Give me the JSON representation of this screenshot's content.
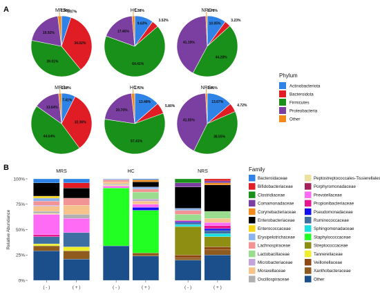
{
  "panel_labels": {
    "a": "A",
    "b": "B"
  },
  "chart_data": [
    {
      "type": "pie",
      "legend_title": "Phylum",
      "legend_placement": "right",
      "categories": [
        "Actinobacteriota",
        "Bacteroidota",
        "Firmicutes",
        "Proteobacteria",
        "Other"
      ],
      "colors": [
        "#2f83e6",
        "#e01d25",
        "#199019",
        "#7a3fa0",
        "#f2891a"
      ],
      "pies": [
        {
          "title": "MRS-",
          "values": [
            5.07,
            34.02,
            39.01,
            19.92,
            1.96
          ],
          "labels": [
            "5.07%",
            "34.02%",
            "39.01%",
            "19.92%",
            "1.96%"
          ]
        },
        {
          "title": "HC-",
          "values": [
            9.63,
            3.52,
            64.41,
            17.46,
            1.38
          ],
          "labels": [
            "9.63%",
            "3.52%",
            "64.41%",
            "17.46%",
            "1.38%"
          ]
        },
        {
          "title": "NRS-",
          "values": [
            10.05,
            3.23,
            44.28,
            41.19,
            0.78
          ],
          "labels": [
            "10.05%",
            "3.23%",
            "44.28%",
            "41.19%",
            "0.78%"
          ]
        },
        {
          "title": "MRS+",
          "values": [
            7.41,
            32.36,
            44.64,
            13.64,
            1.52
          ],
          "labels": [
            "7.41%",
            "32.36%",
            "44.64%",
            "13.64%",
            "1.52%"
          ]
        },
        {
          "title": "HC+",
          "values": [
            13.48,
            5.8,
            57.41,
            20.7,
            1.72
          ],
          "labels": [
            "13.48%",
            "5.80%",
            "57.41%",
            "20.70%",
            "1.72%"
          ]
        },
        {
          "title": "NRS+",
          "values": [
            13.67,
            4.72,
            38.55,
            41.55,
            0.91
          ],
          "labels": [
            "13.67%",
            "4.72%",
            "38.55%",
            "41.55%",
            "0.91%"
          ]
        }
      ]
    },
    {
      "type": "bar",
      "stacked": true,
      "ylabel": "Relative Abundance",
      "ylim": [
        0,
        100
      ],
      "yticks": [
        "0%",
        "25%",
        "50%",
        "75%",
        "100%"
      ],
      "facets": [
        "MRS",
        "HC",
        "NRS"
      ],
      "x_labels": [
        "( - )",
        "( + )"
      ],
      "legend_title": "Family",
      "legend_placement": "right",
      "categories": [
        "Other",
        "Xanthobacteraceae",
        "Veillonellaceae",
        "Tannerellaceae",
        "Streptococcaceae",
        "Staphylococcaceae",
        "Sphingomonadaceae",
        "Ruminococcaceae",
        "Pseudomonadaceae",
        "Propionibacteriaceae",
        "Prevotellaceae",
        "Porphyromonadaceae",
        "Peptostreptococcales-Tissierellales",
        "Oscillospiraceae",
        "Moraxellaceae",
        "Microbacteriaceae",
        "Lactobacillaceae",
        "Lachnospiraceae",
        "Erysipelotrichaceae",
        "Enterococcaceae",
        "Enterobacteriaceae",
        "Corynebacteriaceae",
        "Comamonadaceae",
        "Clostridiaceae",
        "Bifidobacteriaceae",
        "Bacteroidaceae"
      ],
      "legend_order": [
        "Bacteroidaceae",
        "Bifidobacteriaceae",
        "Clostridiaceae",
        "Comamonadaceae",
        "Corynebacteriaceae",
        "Enterobacteriaceae",
        "Enterococcaceae",
        "Erysipelotrichaceae",
        "Lachnospiraceae",
        "Lactobacillaceae",
        "Microbacteriaceae",
        "Moraxellaceae",
        "Oscillospiraceae",
        "Peptostreptococcales-Tissierellales",
        "Porphyromonadaceae",
        "Prevotellaceae",
        "Propionibacteriaceae",
        "Pseudomonadaceae",
        "Ruminococcaceae",
        "Sphingomonadaceae",
        "Staphylococcaceae",
        "Streptococcaceae",
        "Tannerellaceae",
        "Veillonellaceae",
        "Xanthobacteraceae",
        "Other"
      ],
      "colors": {
        "Bacteroidaceae": "#2f83e6",
        "Bifidobacteriaceae": "#e01d25",
        "Clostridiaceae": "#199019",
        "Comamonadaceae": "#7a3fa0",
        "Corynebacteriaceae": "#f2891a",
        "Enterobacteriaceae": "#000000",
        "Enterococcaceae": "#f5d316",
        "Erysipelotrichaceae": "#8cb2ee",
        "Lachnospiraceae": "#f29496",
        "Lactobacillaceae": "#9bdd8e",
        "Microbacteriaceae": "#c3a4d8",
        "Moraxellaceae": "#f6c48a",
        "Oscillospiraceae": "#b0b0b0",
        "Peptostreptococcales-Tissierellales": "#ede29c",
        "Porphyromonadaceae": "#a6225a",
        "Prevotellaceae": "#ff6bf5",
        "Propionibacteriaceae": "#e81690",
        "Pseudomonadaceae": "#1010f0",
        "Ruminococcaceae": "#3d6fa2",
        "Sphingomonadaceae": "#18dede",
        "Staphylococcaceae": "#22ff22",
        "Streptococcaceae": "#8e8e12",
        "Tannerellaceae": "#eeee2a",
        "Veillonellaceae": "#8e4a12",
        "Xanthobacteraceae": "#8e5a1e",
        "Other": "#1a4f8c"
      },
      "bars": [
        {
          "facet": "MRS",
          "label": "( - )",
          "values": {
            "Other": 29,
            "Xanthobacteraceae": 5,
            "Tannerellaceae": 2,
            "Ruminococcaceae": 7,
            "Prevotellaceae": 20,
            "Propionibacteriaceae": 2,
            "Moraxellaceae": 5,
            "Lachnospiraceae": 4,
            "Erysipelotrichaceae": 3,
            "Oscillospiraceae": 2,
            "Enterococcaceae": 2,
            "Peptostreptococcales-Tissierellales": 1,
            "Enterobacteriaceae": 13,
            "Microbacteriaceae": 1,
            "Bacteroidaceae": 4
          }
        },
        {
          "facet": "MRS",
          "label": "( + )",
          "values": {
            "Other": 21,
            "Xanthobacteraceae": 8,
            "Tannerellaceae": 4,
            "Ruminococcaceae": 14,
            "Prevotellaceae": 14,
            "Moraxellaceae": 9,
            "Lachnospiraceae": 7,
            "Oscillospiraceae": 4,
            "Enterobacteriaceae": 10,
            "Bifidobacteriaceae": 5,
            "Bacteroidaceae": 4
          }
        },
        {
          "facet": "HC",
          "label": "( - )",
          "values": {
            "Other": 34,
            "Staphylococcaceae": 57,
            "Prevotellaceae": 2,
            "Moraxellaceae": 2,
            "Lachnospiraceae": 2,
            "Peptostreptococcales-Tissierellales": 1,
            "Erysipelotrichaceae": 1,
            "Oscillospiraceae": 1
          }
        },
        {
          "facet": "HC",
          "label": "( + )",
          "values": {
            "Other": 24,
            "Xanthobacteraceae": 3,
            "Staphylococcaceae": 42,
            "Pseudomonadaceae": 3,
            "Prevotellaceae": 3,
            "Lachnospiraceae": 3,
            "Erysipelotrichaceae": 2,
            "Lactobacillaceae": 7,
            "Moraxellaceae": 3,
            "Microbacteriaceae": 2,
            "Enterobacteriaceae": 5,
            "Corynebacteriaceae": 2,
            "Bacteroidaceae": 1
          }
        },
        {
          "facet": "NRS",
          "label": "( - )",
          "values": {
            "Other": 20,
            "Xanthobacteraceae": 2,
            "Veillonellaceae": 3,
            "Streptococcaceae": 28,
            "Ruminococcaceae": 2,
            "Sphingomonadaceae": 2,
            "Pseudomonadaceae": 1,
            "Propionibacteriaceae": 1,
            "Lachnospiraceae": 4,
            "Erysipelotrichaceae": 2,
            "Lactobacillaceae": 6,
            "Enterobacteriaceae": 21,
            "Comamonadaceae": 4,
            "Clostridiaceae": 4
          }
        },
        {
          "facet": "NRS",
          "label": "( + )",
          "values": {
            "Other": 25,
            "Xanthobacteraceae": 5,
            "Veillonellaceae": 3,
            "Streptococcaceae": 10,
            "Ruminococcaceae": 3,
            "Sphingomonadaceae": 3,
            "Pseudomonadaceae": 2,
            "Propionibacteriaceae": 3,
            "Prevotellaceae": 3,
            "Moraxellaceae": 4,
            "Lactobacillaceae": 7,
            "Corynebacteriaceae": 2,
            "Enterobacteriaceae": 26,
            "Comamonadaceae": 2,
            "Bifidobacteriaceae": 2
          }
        }
      ]
    }
  ]
}
